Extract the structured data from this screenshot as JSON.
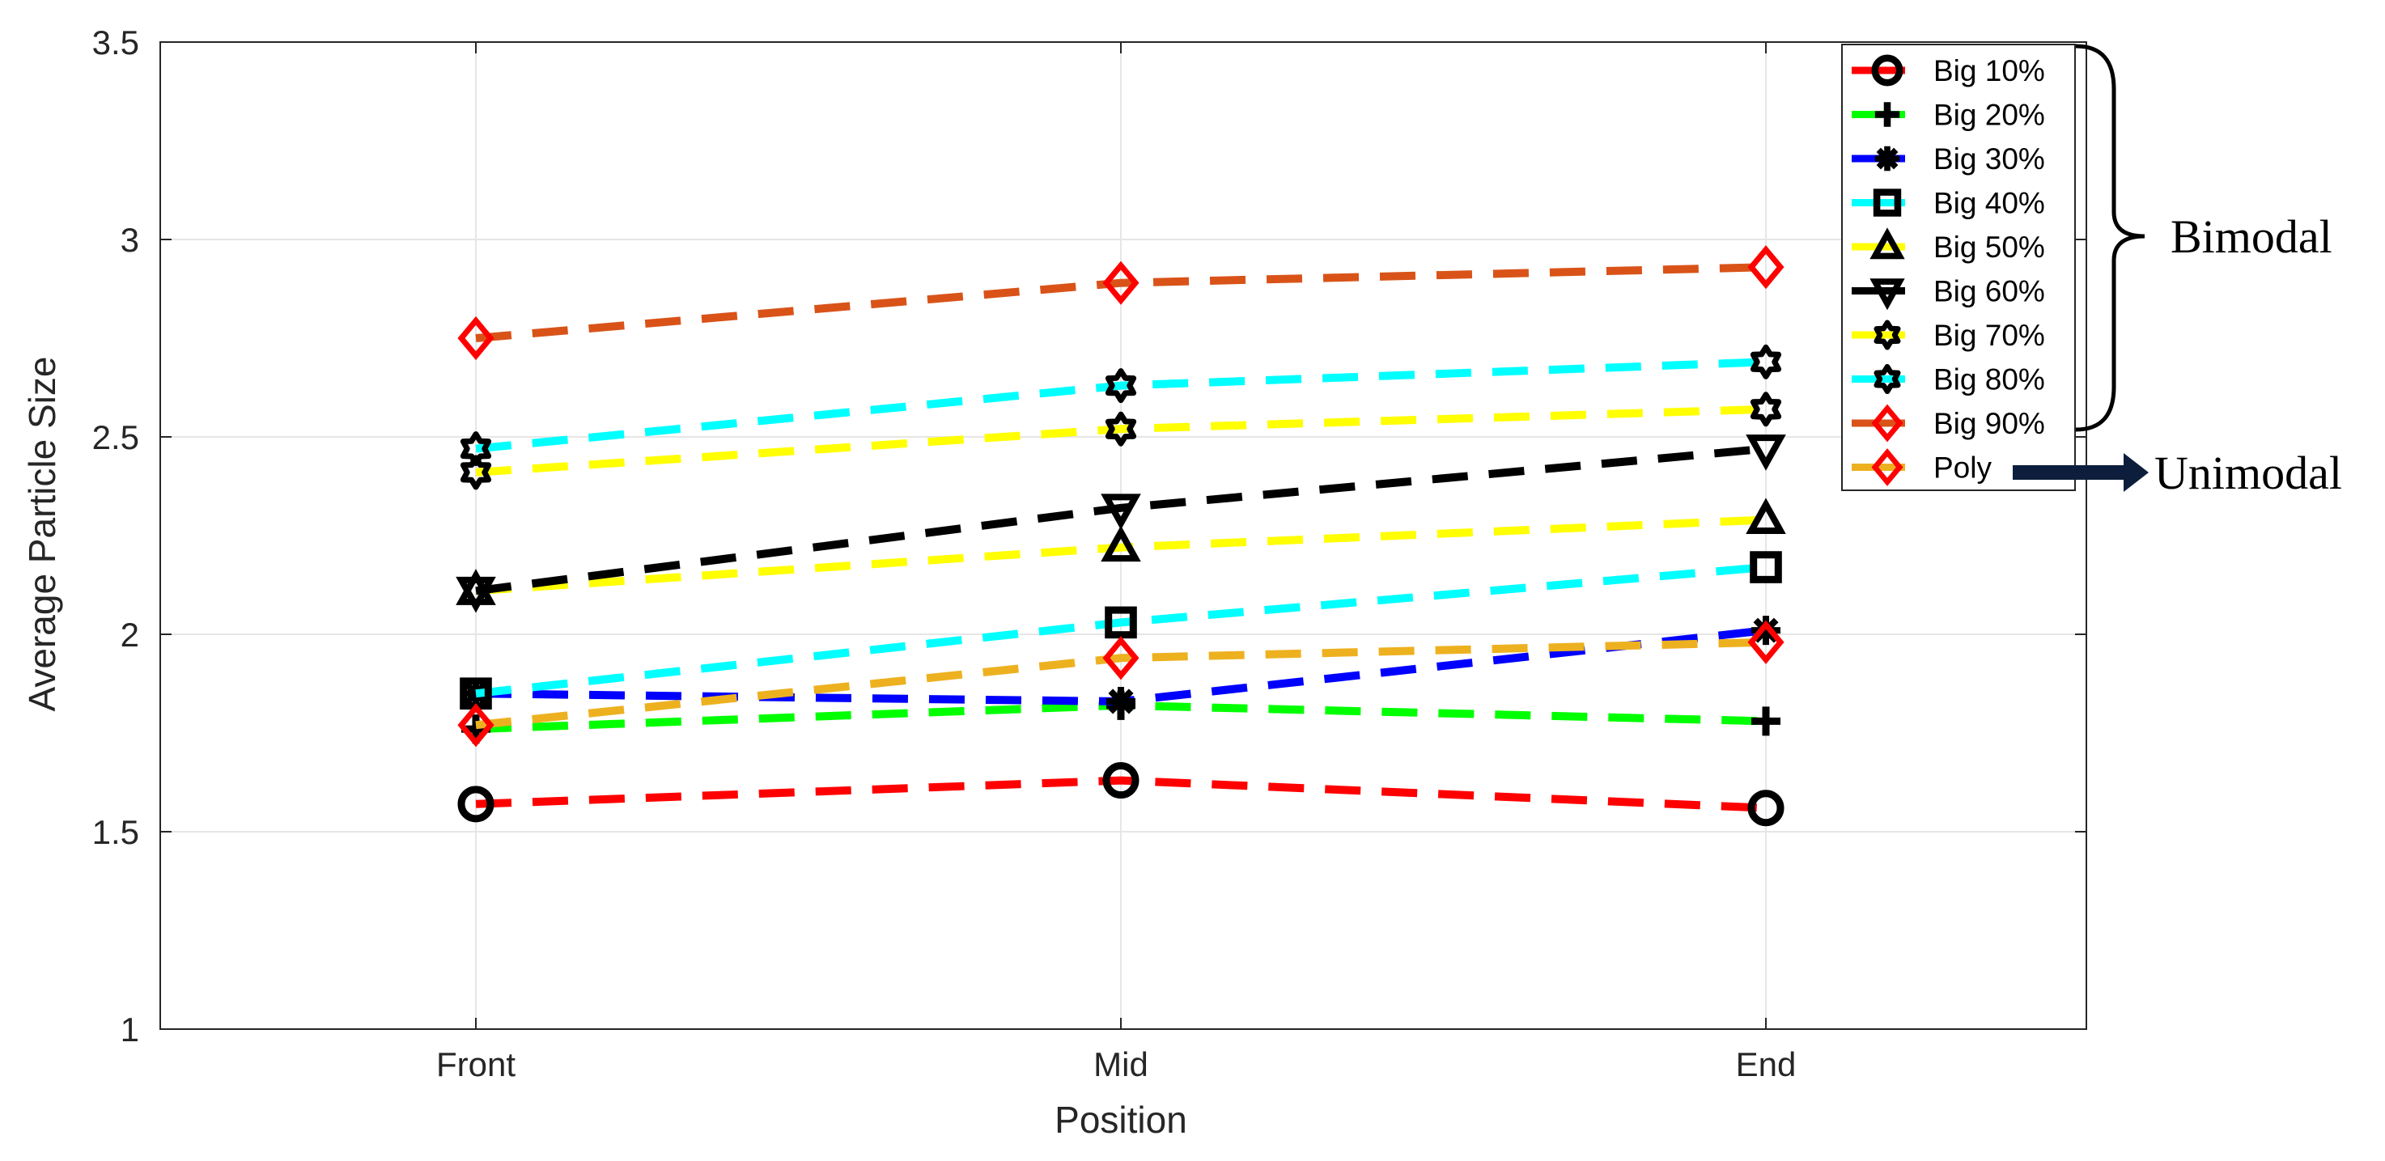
{
  "chart_data": {
    "type": "line",
    "title": "",
    "xlabel": "Position",
    "ylabel": "Average Particle Size",
    "categories": [
      "Front",
      "Mid",
      "End"
    ],
    "ylim": [
      1,
      3.5
    ],
    "yticks": [
      "1",
      "1.5",
      "2",
      "2.5",
      "3",
      "3.5"
    ],
    "grid": true,
    "legend_position": "top-right",
    "series": [
      {
        "name": "Big 10%",
        "color": "#ff0000",
        "marker": "circle",
        "values": [
          1.57,
          1.63,
          1.56
        ]
      },
      {
        "name": "Big 20%",
        "color": "#00ff00",
        "marker": "plus",
        "values": [
          1.76,
          1.82,
          1.78
        ]
      },
      {
        "name": "Big 30%",
        "color": "#0000ff",
        "marker": "asterisk",
        "values": [
          1.85,
          1.83,
          2.01
        ]
      },
      {
        "name": "Big 40%",
        "color": "#00ffff",
        "marker": "square",
        "values": [
          1.85,
          2.03,
          2.17
        ]
      },
      {
        "name": "Big 50%",
        "color": "#ffff00",
        "marker": "triangle-up",
        "values": [
          2.11,
          2.22,
          2.29
        ]
      },
      {
        "name": "Big 60%",
        "color": "#000000",
        "marker": "triangle-down",
        "values": [
          2.11,
          2.32,
          2.47
        ]
      },
      {
        "name": "Big 70%",
        "color": "#ffff00",
        "marker": "hexagram",
        "values": [
          2.41,
          2.52,
          2.57
        ]
      },
      {
        "name": "Big 80%",
        "color": "#00ffff",
        "marker": "hexagram",
        "values": [
          2.47,
          2.63,
          2.69
        ]
      },
      {
        "name": "Big 90%",
        "color": "#d95319",
        "marker": "diamond",
        "values": [
          2.75,
          2.89,
          2.93
        ]
      },
      {
        "name": "Poly",
        "color": "#edb120",
        "marker": "diamond",
        "values": [
          1.77,
          1.94,
          1.98
        ]
      }
    ],
    "annotations": {
      "bimodal": "Bimodal",
      "unimodal": "Unimodal"
    }
  }
}
